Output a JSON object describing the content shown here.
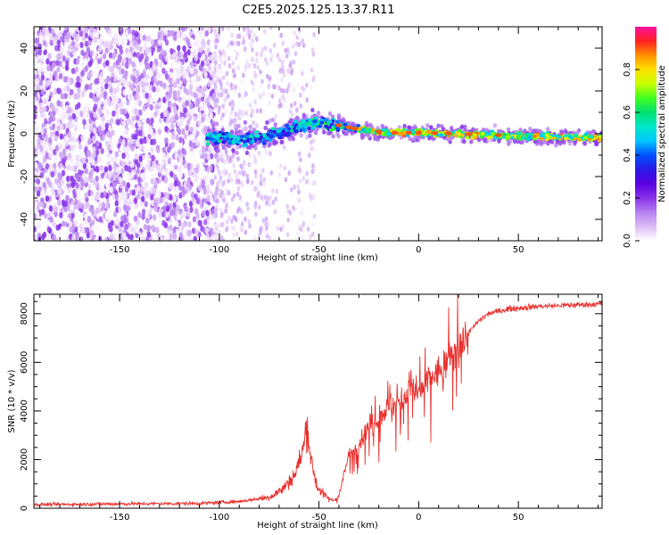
{
  "title": "C2E5.2025.125.13.37.R11",
  "colors": {
    "snr_line": "#e8302d",
    "scatter_base": "#6a00e8",
    "frame": "#000000"
  },
  "chart_data": [
    {
      "type": "heatmap",
      "xlabel": "Height of straight line (km)",
      "ylabel": "Frequency (Hz)",
      "xlim": [
        -193,
        92
      ],
      "ylim": [
        -50,
        50
      ],
      "xticks": [
        -150,
        -100,
        -50,
        0,
        50
      ],
      "yticks": [
        -40,
        -20,
        0,
        20,
        40
      ],
      "colorbar": {
        "label": "Normalized spectral amplitude",
        "range": [
          0,
          1
        ],
        "ticks": [
          0.0,
          0.2,
          0.4,
          0.6,
          0.8
        ],
        "tick_labels": [
          "0.0",
          "0.2",
          "0.4",
          "0.6",
          "0.8"
        ],
        "colormap": [
          "#ffffff",
          "#dcbcf5",
          "#b680f0",
          "#8a32ea",
          "#5a00e0",
          "#2a1ae8",
          "#0050ff",
          "#00c8ff",
          "#00e8c8",
          "#00e070",
          "#40ff20",
          "#c8ff00",
          "#ffe000",
          "#ff9000",
          "#ff2020",
          "#ff10a0"
        ]
      },
      "ridge_center": [
        {
          "x": -105,
          "y": -2
        },
        {
          "x": -90,
          "y": -2.5
        },
        {
          "x": -80,
          "y": -2
        },
        {
          "x": -70,
          "y": 0
        },
        {
          "x": -60,
          "y": 4
        },
        {
          "x": -50,
          "y": 5
        },
        {
          "x": -40,
          "y": 4
        },
        {
          "x": -30,
          "y": 2
        },
        {
          "x": -15,
          "y": 0.5
        },
        {
          "x": 0,
          "y": 0.5
        },
        {
          "x": 20,
          "y": 0
        },
        {
          "x": 50,
          "y": -1
        },
        {
          "x": 92,
          "y": -2
        }
      ]
    },
    {
      "type": "line",
      "xlabel": "Height of straight line (km)",
      "ylabel": "SNR (10 * v/v)",
      "xlim": [
        -193,
        92
      ],
      "ylim": [
        0,
        8800
      ],
      "xticks": [
        -150,
        -100,
        -50,
        0,
        50
      ],
      "yticks": [
        0,
        2000,
        4000,
        6000,
        8000
      ],
      "series": [
        {
          "color": "#e8302d",
          "points": [
            {
              "x": -193,
              "y": 150
            },
            {
              "x": -150,
              "y": 180
            },
            {
              "x": -110,
              "y": 200
            },
            {
              "x": -90,
              "y": 280
            },
            {
              "x": -75,
              "y": 450
            },
            {
              "x": -68,
              "y": 800
            },
            {
              "x": -62,
              "y": 1400
            },
            {
              "x": -58,
              "y": 2400
            },
            {
              "x": -56,
              "y": 3500
            },
            {
              "x": -54,
              "y": 2000
            },
            {
              "x": -51,
              "y": 900
            },
            {
              "x": -47,
              "y": 500
            },
            {
              "x": -43,
              "y": 300
            },
            {
              "x": -40,
              "y": 500
            },
            {
              "x": -38,
              "y": 1200
            },
            {
              "x": -35,
              "y": 2200
            },
            {
              "x": -30,
              "y": 2600
            },
            {
              "x": -25,
              "y": 3400
            },
            {
              "x": -20,
              "y": 3700
            },
            {
              "x": -15,
              "y": 4200
            },
            {
              "x": -10,
              "y": 4300
            },
            {
              "x": -5,
              "y": 4800
            },
            {
              "x": 0,
              "y": 4700
            },
            {
              "x": 5,
              "y": 5300
            },
            {
              "x": 10,
              "y": 5600
            },
            {
              "x": 15,
              "y": 6100
            },
            {
              "x": 20,
              "y": 6600
            },
            {
              "x": 25,
              "y": 7200
            },
            {
              "x": 30,
              "y": 7700
            },
            {
              "x": 35,
              "y": 8000
            },
            {
              "x": 45,
              "y": 8200
            },
            {
              "x": 60,
              "y": 8300
            },
            {
              "x": 75,
              "y": 8350
            },
            {
              "x": 92,
              "y": 8400
            }
          ]
        }
      ]
    }
  ]
}
